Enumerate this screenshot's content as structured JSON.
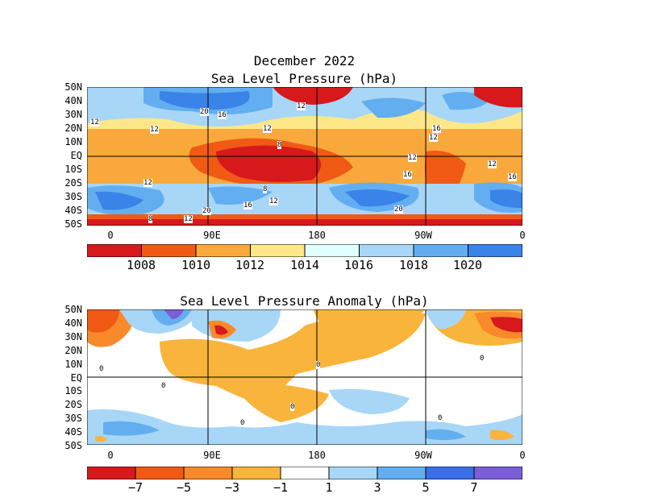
{
  "header": {
    "title": "December 2022",
    "subtitle": "Sea Level Pressure (hPa)"
  },
  "panels": [
    {
      "id": "slp",
      "title": "Sea Level Pressure (hPa)",
      "lat_labels": [
        "50N",
        "40N",
        "30N",
        "20N",
        "10N",
        "EQ",
        "10S",
        "20S",
        "30S",
        "40S",
        "50S"
      ],
      "lon_labels": [
        "0",
        "90E",
        "180",
        "90W",
        "0"
      ],
      "contour_labels": [
        "20",
        "16",
        "12",
        "12",
        "12",
        "16",
        "12",
        "8",
        "12",
        "12",
        "16",
        "12",
        "16",
        "8",
        "12",
        "20",
        "16",
        "12",
        "20",
        "8",
        "12"
      ],
      "colorbar": {
        "colors": [
          "#d7191c",
          "#f05a14",
          "#f9a93c",
          "#fde789",
          "#e2ffff",
          "#a7d6f7",
          "#62aef0",
          "#3a83e8"
        ],
        "labels": [
          "1008",
          "1010",
          "1012",
          "1014",
          "1016",
          "1018",
          "1020"
        ]
      }
    },
    {
      "id": "anomaly",
      "title": "Sea Level Pressure Anomaly (hPa)",
      "lat_labels": [
        "50N",
        "40N",
        "30N",
        "20N",
        "10N",
        "EQ",
        "10S",
        "20S",
        "30S",
        "40S",
        "50S"
      ],
      "lon_labels": [
        "0",
        "90E",
        "180",
        "90W",
        "0"
      ],
      "contour_labels": [
        "0",
        "0",
        "0",
        "0",
        "0",
        "0",
        "0"
      ],
      "colorbar": {
        "colors": [
          "#d7191c",
          "#f05a14",
          "#f98a2c",
          "#f9b43c",
          "#ffffff",
          "#a7d6f7",
          "#62aef0",
          "#3a6fe8",
          "#7a5fd6"
        ],
        "labels": [
          "−7",
          "−5",
          "−3",
          "−1",
          "1",
          "3",
          "5",
          "7"
        ]
      }
    }
  ]
}
